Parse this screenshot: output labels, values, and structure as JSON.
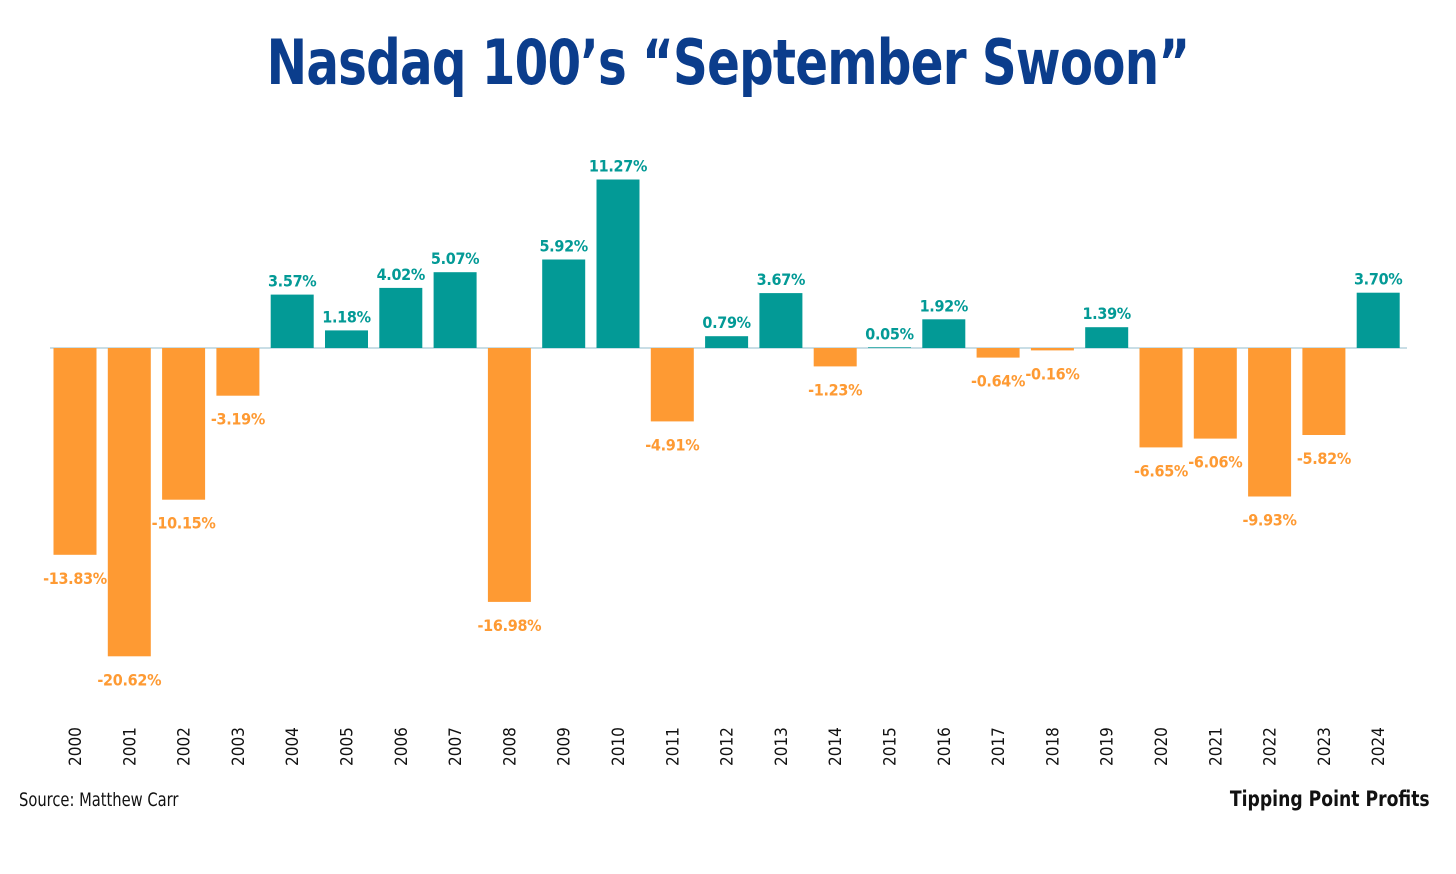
{
  "page": {
    "title": "Nasdaq 100’s “September Swoon”",
    "source": "Source: Matthew Carr",
    "brand": "Tipping Point Profits"
  },
  "chart_data": {
    "type": "bar",
    "title": "Nasdaq 100’s “September Swoon”",
    "xlabel": "",
    "ylabel": "",
    "ylim": [
      -24,
      14
    ],
    "grid": false,
    "legend": "none",
    "categories": [
      "2000",
      "2001",
      "2002",
      "2003",
      "2004",
      "2005",
      "2006",
      "2007",
      "2008",
      "2009",
      "2010",
      "2011",
      "2012",
      "2013",
      "2014",
      "2015",
      "2016",
      "2017",
      "2018",
      "2019",
      "2020",
      "2021",
      "2022",
      "2023",
      "2024"
    ],
    "values": [
      -13.83,
      -20.62,
      -10.15,
      -3.19,
      3.57,
      1.18,
      4.02,
      5.07,
      -16.98,
      5.92,
      11.27,
      -4.91,
      0.79,
      3.67,
      -1.23,
      0.05,
      1.92,
      -0.64,
      -0.16,
      1.39,
      -6.65,
      -6.06,
      -9.93,
      -5.82,
      3.7
    ],
    "labels": [
      "-13.83%",
      "-20.62%",
      "-10.15%",
      "-3.19%",
      "3.57%",
      "1.18%",
      "4.02%",
      "5.07%",
      "-16.98%",
      "5.92%",
      "11.27%",
      "-4.91%",
      "0.79%",
      "3.67%",
      "-1.23%",
      "0.05%",
      "1.92%",
      "-0.64%",
      "-0.16%",
      "1.39%",
      "-6.65%",
      "-6.06%",
      "-9.93%",
      "-5.82%",
      "3.70%"
    ],
    "colors": {
      "positive": "#039a96",
      "negative": "#fe9a33",
      "axis": "#a9cbd6"
    }
  }
}
